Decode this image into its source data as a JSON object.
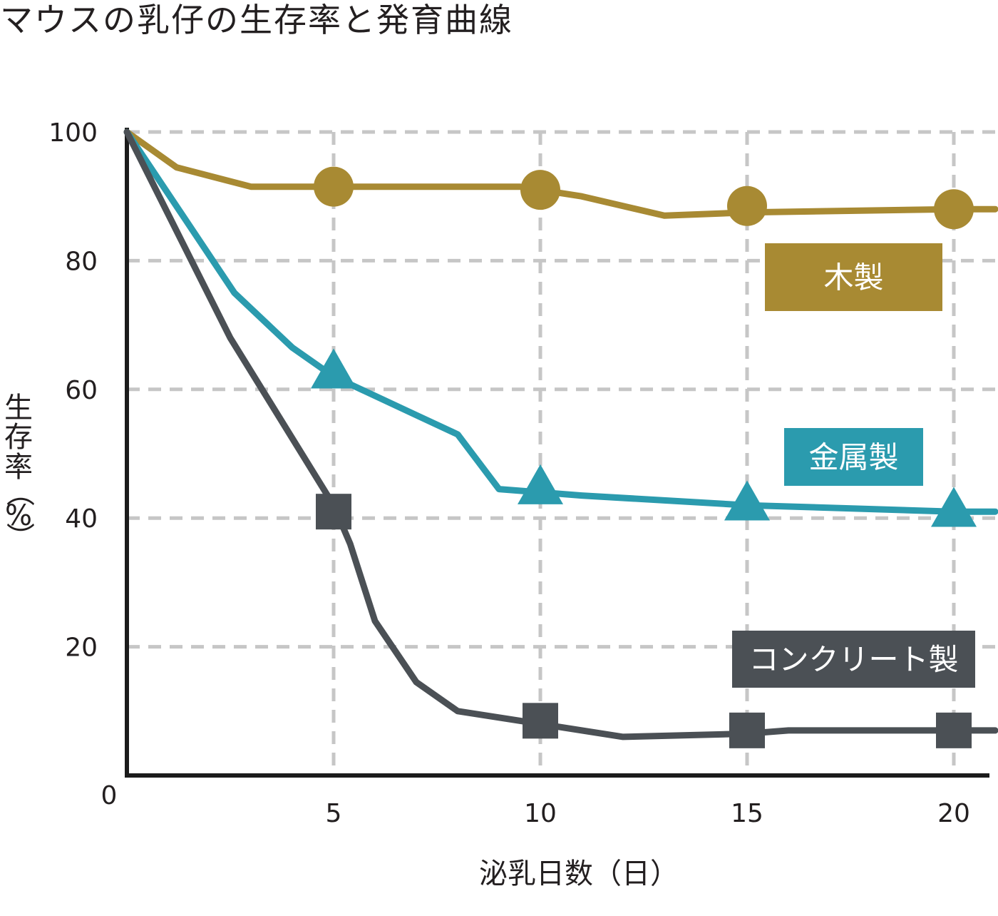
{
  "chart_data": {
    "type": "line",
    "title": "マウスの乳仔の生存率と発育曲線",
    "xlabel": "泌乳日数（日）",
    "ylabel": "生存率（%）",
    "xlim": [
      0,
      21
    ],
    "ylim": [
      0,
      100
    ],
    "x_ticks": [
      5,
      10,
      15,
      20
    ],
    "y_ticks": [
      20,
      40,
      60,
      80,
      100
    ],
    "origin_label": "0",
    "grid": true,
    "legend_position": "right (labels beside each line)",
    "series": [
      {
        "name": "木製",
        "color": "#a88a33",
        "marker": "circle",
        "points": [
          [
            0,
            100
          ],
          [
            1.2,
            94.5
          ],
          [
            3,
            91.5
          ],
          [
            5,
            91.5
          ],
          [
            9.5,
            91.5
          ],
          [
            10,
            91
          ],
          [
            11,
            90
          ],
          [
            13,
            87
          ],
          [
            15,
            87.5
          ],
          [
            20,
            88
          ],
          [
            21,
            88
          ]
        ],
        "marker_points": [
          [
            5,
            91.5
          ],
          [
            10,
            91
          ],
          [
            15,
            88.5
          ],
          [
            20,
            88
          ]
        ]
      },
      {
        "name": "金属製",
        "color": "#2b9bae",
        "marker": "triangle",
        "points": [
          [
            0,
            100
          ],
          [
            2.6,
            75
          ],
          [
            4,
            66.5
          ],
          [
            5,
            62
          ],
          [
            7,
            56
          ],
          [
            8,
            53
          ],
          [
            9,
            44.5
          ],
          [
            10,
            44
          ],
          [
            11,
            43.5
          ],
          [
            15,
            42
          ],
          [
            20,
            41
          ],
          [
            21,
            41
          ]
        ],
        "marker_points": [
          [
            5,
            62.5
          ],
          [
            10,
            44.5
          ],
          [
            15,
            42
          ],
          [
            20,
            41
          ]
        ]
      },
      {
        "name": "コンクリート製",
        "color": "#4b5055",
        "marker": "square",
        "points": [
          [
            0,
            100
          ],
          [
            2.5,
            68
          ],
          [
            5,
            42
          ],
          [
            5.4,
            36
          ],
          [
            6,
            24
          ],
          [
            7,
            14.5
          ],
          [
            8,
            10
          ],
          [
            10,
            8
          ],
          [
            12,
            6
          ],
          [
            15,
            6.5
          ],
          [
            16,
            7
          ],
          [
            20,
            7
          ],
          [
            21,
            7
          ]
        ],
        "marker_points": [
          [
            5,
            41
          ],
          [
            10,
            8.5
          ],
          [
            15,
            7
          ],
          [
            20,
            7
          ]
        ]
      }
    ]
  }
}
